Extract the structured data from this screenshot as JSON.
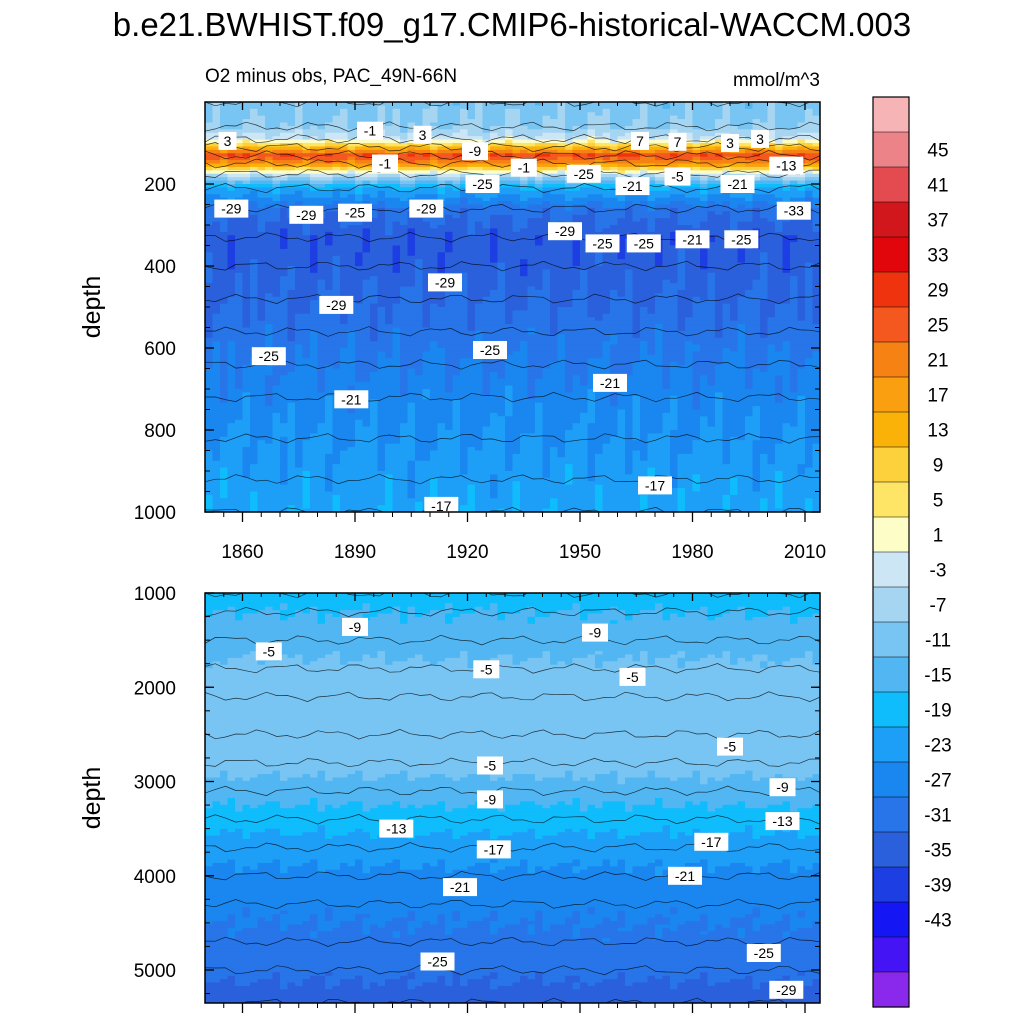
{
  "chart_data": {
    "type": "heatmap",
    "title": "b.e21.BWHIST.f09_g17.CMIP6-historical-WACCM.003",
    "subtitle_left": "O2 minus obs, PAC_49N-66N",
    "subtitle_right": "mmol/m^3",
    "x_range": [
      1850,
      2014
    ],
    "x_ticks": [
      "1860",
      "1890",
      "1920",
      "1950",
      "1980",
      "2010"
    ],
    "x_tick_values": [
      1860,
      1890,
      1920,
      1950,
      1980,
      2010
    ],
    "panels": [
      {
        "name": "upper",
        "ylabel": "depth",
        "y_range": [
          0,
          1000
        ],
        "y_ticks": [
          "200",
          "400",
          "600",
          "800",
          "1000"
        ],
        "y_tick_values": [
          200,
          400,
          600,
          800,
          1000
        ],
        "profile_depths": [
          0,
          60,
          90,
          110,
          130,
          150,
          175,
          210,
          260,
          330,
          400,
          480,
          560,
          640,
          720,
          820,
          920,
          1000
        ],
        "profile_values": [
          -5,
          -3,
          3,
          17,
          33,
          25,
          3,
          -15,
          -25,
          -30,
          -29,
          -27,
          -25,
          -23,
          -21,
          -19,
          -17,
          -16
        ],
        "contour_labels": [
          {
            "text": "3",
            "x": 1856,
            "y": 95
          },
          {
            "text": "-1",
            "x": 1894,
            "y": 70
          },
          {
            "text": "3",
            "x": 1908,
            "y": 80
          },
          {
            "text": "-9",
            "x": 1922,
            "y": 120
          },
          {
            "text": "-1",
            "x": 1898,
            "y": 150
          },
          {
            "text": "-1",
            "x": 1935,
            "y": 160
          },
          {
            "text": "-25",
            "x": 1951,
            "y": 175
          },
          {
            "text": "-25",
            "x": 1924,
            "y": 200
          },
          {
            "text": "7",
            "x": 1966,
            "y": 95
          },
          {
            "text": "7",
            "x": 1976,
            "y": 97
          },
          {
            "text": "3",
            "x": 1990,
            "y": 100
          },
          {
            "text": "3",
            "x": 1998,
            "y": 90
          },
          {
            "text": "-13",
            "x": 2005,
            "y": 155
          },
          {
            "text": "-5",
            "x": 1976,
            "y": 182
          },
          {
            "text": "-21",
            "x": 1964,
            "y": 205
          },
          {
            "text": "-21",
            "x": 1992,
            "y": 200
          },
          {
            "text": "-29",
            "x": 1857,
            "y": 260
          },
          {
            "text": "-29",
            "x": 1877,
            "y": 275
          },
          {
            "text": "-25",
            "x": 1890,
            "y": 270
          },
          {
            "text": "-29",
            "x": 1909,
            "y": 260
          },
          {
            "text": "-29",
            "x": 1946,
            "y": 315
          },
          {
            "text": "-25",
            "x": 1956,
            "y": 345
          },
          {
            "text": "-25",
            "x": 1967,
            "y": 345
          },
          {
            "text": "-21",
            "x": 1980,
            "y": 335
          },
          {
            "text": "-25",
            "x": 1993,
            "y": 335
          },
          {
            "text": "-33",
            "x": 2007,
            "y": 265
          },
          {
            "text": "-29",
            "x": 1914,
            "y": 440
          },
          {
            "text": "-29",
            "x": 1885,
            "y": 495
          },
          {
            "text": "-25",
            "x": 1867,
            "y": 620
          },
          {
            "text": "-25",
            "x": 1926,
            "y": 605
          },
          {
            "text": "-21",
            "x": 1889,
            "y": 725
          },
          {
            "text": "-21",
            "x": 1958,
            "y": 685
          },
          {
            "text": "-17",
            "x": 1970,
            "y": 935
          },
          {
            "text": "-17",
            "x": 1913,
            "y": 985
          }
        ]
      },
      {
        "name": "lower",
        "ylabel": "depth",
        "y_range": [
          1000,
          5350
        ],
        "y_ticks": [
          "1000",
          "2000",
          "3000",
          "4000",
          "5000"
        ],
        "y_tick_values": [
          1000,
          2000,
          3000,
          4000,
          5000
        ],
        "profile_depths": [
          1000,
          1200,
          1500,
          1800,
          2100,
          2500,
          2800,
          3100,
          3400,
          3700,
          4000,
          4300,
          4700,
          5000,
          5350
        ],
        "profile_values": [
          -13,
          -11,
          -9,
          -6,
          -4,
          -4,
          -5,
          -9,
          -13,
          -17,
          -20,
          -22,
          -24,
          -26,
          -29
        ],
        "contour_labels": [
          {
            "text": "-9",
            "x": 1890,
            "y": 1360
          },
          {
            "text": "-9",
            "x": 1954,
            "y": 1420
          },
          {
            "text": "-5",
            "x": 1867,
            "y": 1620
          },
          {
            "text": "-5",
            "x": 1925,
            "y": 1810
          },
          {
            "text": "-5",
            "x": 1964,
            "y": 1890
          },
          {
            "text": "-5",
            "x": 1990,
            "y": 2630
          },
          {
            "text": "-5",
            "x": 1926,
            "y": 2830
          },
          {
            "text": "-9",
            "x": 1926,
            "y": 3190
          },
          {
            "text": "-9",
            "x": 2004,
            "y": 3060
          },
          {
            "text": "-13",
            "x": 1901,
            "y": 3500
          },
          {
            "text": "-13",
            "x": 2004,
            "y": 3420
          },
          {
            "text": "-17",
            "x": 1985,
            "y": 3640
          },
          {
            "text": "-17",
            "x": 1927,
            "y": 3720
          },
          {
            "text": "-21",
            "x": 1918,
            "y": 4120
          },
          {
            "text": "-21",
            "x": 1978,
            "y": 4000
          },
          {
            "text": "-25",
            "x": 1912,
            "y": 4910
          },
          {
            "text": "-25",
            "x": 1999,
            "y": 4820
          },
          {
            "text": "-29",
            "x": 2005,
            "y": 5210
          }
        ]
      }
    ],
    "colorbar": {
      "levels": [
        45,
        41,
        37,
        33,
        29,
        25,
        21,
        17,
        13,
        9,
        5,
        1,
        -3,
        -7,
        -11,
        -15,
        -19,
        -23,
        -27,
        -31,
        -35,
        -39,
        -43
      ],
      "colors": [
        "#f7b4b6",
        "#ec8388",
        "#e44b50",
        "#d2171c",
        "#e1060c",
        "#ee330e",
        "#f5581f",
        "#f68214",
        "#f99f10",
        "#fbb208",
        "#fdd13b",
        "#ffe566",
        "#fdfdc8",
        "#cde6f5",
        "#a6d5f2",
        "#78c4f2",
        "#52b6f2",
        "#0fbcfc",
        "#1e9ff7",
        "#1a87f0",
        "#2775e8",
        "#2b60dc",
        "#1c3ee2",
        "#1516f4",
        "#4414f4",
        "#8a28ec"
      ]
    }
  }
}
